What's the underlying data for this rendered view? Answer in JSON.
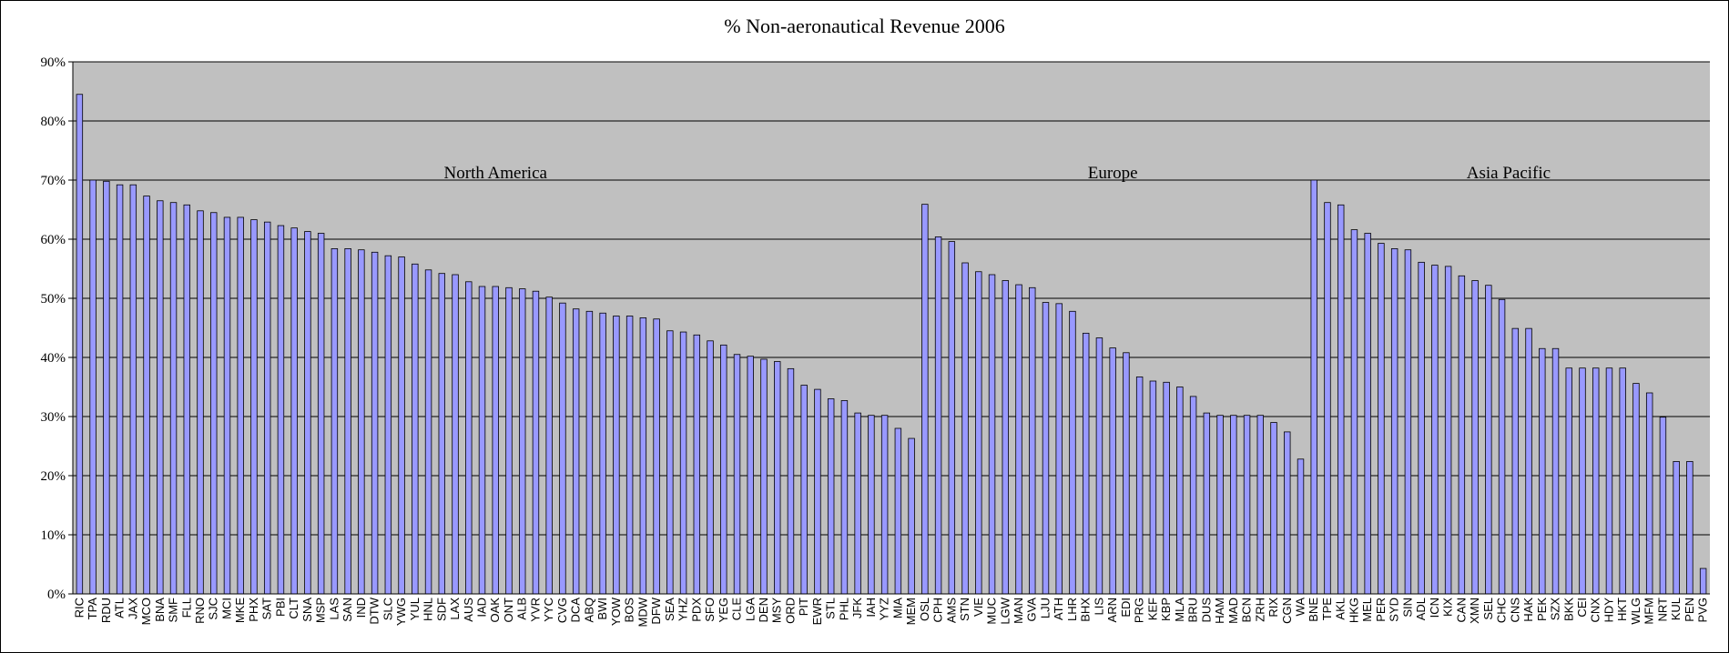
{
  "chart_data": {
    "type": "bar",
    "title": "% Non-aeronautical Revenue 2006",
    "xlabel": "",
    "ylabel": "",
    "ylim": [
      0,
      90
    ],
    "yticks": [
      "0%",
      "10%",
      "20%",
      "30%",
      "40%",
      "50%",
      "60%",
      "70%",
      "80%",
      "90%"
    ],
    "grid": true,
    "bar_color": "#9999ff",
    "plot_background": "#c0c0c0",
    "region_labels": [
      {
        "text": "North America",
        "from": "RIC",
        "to": "MEM"
      },
      {
        "text": "Europe",
        "from": "OSL",
        "to": "WA"
      },
      {
        "text": "Asia Pacific",
        "from": "BNE",
        "to": "PVG"
      }
    ],
    "categories": [
      "RIC",
      "TPA",
      "RDU",
      "ATL",
      "JAX",
      "MCO",
      "BNA",
      "SMF",
      "FLL",
      "RNO",
      "SJC",
      "MCI",
      "MKE",
      "PHX",
      "SAT",
      "PBI",
      "CLT",
      "SNA",
      "MSP",
      "LAS",
      "SAN",
      "IND",
      "DTW",
      "SLC",
      "YWG",
      "YUL",
      "HNL",
      "SDF",
      "LAX",
      "AUS",
      "IAD",
      "OAK",
      "ONT",
      "ALB",
      "YVR",
      "YYC",
      "CVG",
      "DCA",
      "ABQ",
      "BWI",
      "YOW",
      "BOS",
      "MDW",
      "DFW",
      "SEA",
      "YHZ",
      "PDX",
      "SFO",
      "YEG",
      "CLE",
      "LGA",
      "DEN",
      "MSY",
      "ORD",
      "PIT",
      "EWR",
      "STL",
      "PHL",
      "JFK",
      "IAH",
      "YYZ",
      "MIA",
      "MEM",
      "OSL",
      "CPH",
      "AMS",
      "STN",
      "VIE",
      "MUC",
      "LGW",
      "MAN",
      "GVA",
      "LJU",
      "ATH",
      "LHR",
      "BHX",
      "LIS",
      "ARN",
      "EDI",
      "PRG",
      "KEF",
      "KBP",
      "MLA",
      "BRU",
      "DUS",
      "HAM",
      "MAD",
      "BCN",
      "ZRH",
      "RIX",
      "CGN",
      "WA",
      "BNE",
      "TPE",
      "AKL",
      "HKG",
      "MEL",
      "PER",
      "SYD",
      "SIN",
      "ADL",
      "ICN",
      "KIX",
      "CAN",
      "XMN",
      "SEL",
      "CHC",
      "CNS",
      "HAK",
      "PEK",
      "SZX",
      "BKK",
      "CEI",
      "CNX",
      "HDY",
      "HKT",
      "WLG",
      "MFM",
      "NRT",
      "KUL",
      "PEN",
      "PVG"
    ],
    "values": [
      84.5,
      70,
      69.8,
      69.2,
      69.2,
      67.3,
      66.5,
      66.2,
      65.8,
      64.8,
      64.5,
      63.7,
      63.7,
      63.3,
      62.9,
      62.3,
      61.9,
      61.3,
      61,
      58.4,
      58.4,
      58.2,
      57.8,
      57.2,
      57,
      55.8,
      54.8,
      54.2,
      54,
      52.8,
      52,
      52,
      51.8,
      51.6,
      51.2,
      50.2,
      49.2,
      48.2,
      47.8,
      47.5,
      47,
      47,
      46.7,
      46.5,
      44.5,
      44.3,
      43.8,
      42.8,
      42.1,
      40.5,
      40.2,
      39.7,
      39.3,
      38.1,
      35.3,
      34.6,
      33,
      32.7,
      30.6,
      30.2,
      30.2,
      28,
      26.3,
      65.9,
      60.4,
      59.6,
      56,
      54.5,
      54,
      53,
      52.3,
      51.8,
      49.3,
      49.1,
      47.8,
      44.1,
      43.3,
      41.6,
      40.8,
      36.7,
      36,
      35.8,
      35,
      33.4,
      30.6,
      30.2,
      30.2,
      30.2,
      30.2,
      29,
      27.4,
      22.8,
      70,
      66.2,
      65.8,
      61.6,
      61,
      59.3,
      58.4,
      58.2,
      56.1,
      55.6,
      55.4,
      53.8,
      53,
      52.2,
      49.8,
      44.9,
      44.9,
      41.5,
      41.5,
      38.2,
      38.2,
      38.2,
      38.2,
      38.2,
      35.6,
      34,
      29.9,
      22.4,
      22.4,
      4.3
    ]
  }
}
